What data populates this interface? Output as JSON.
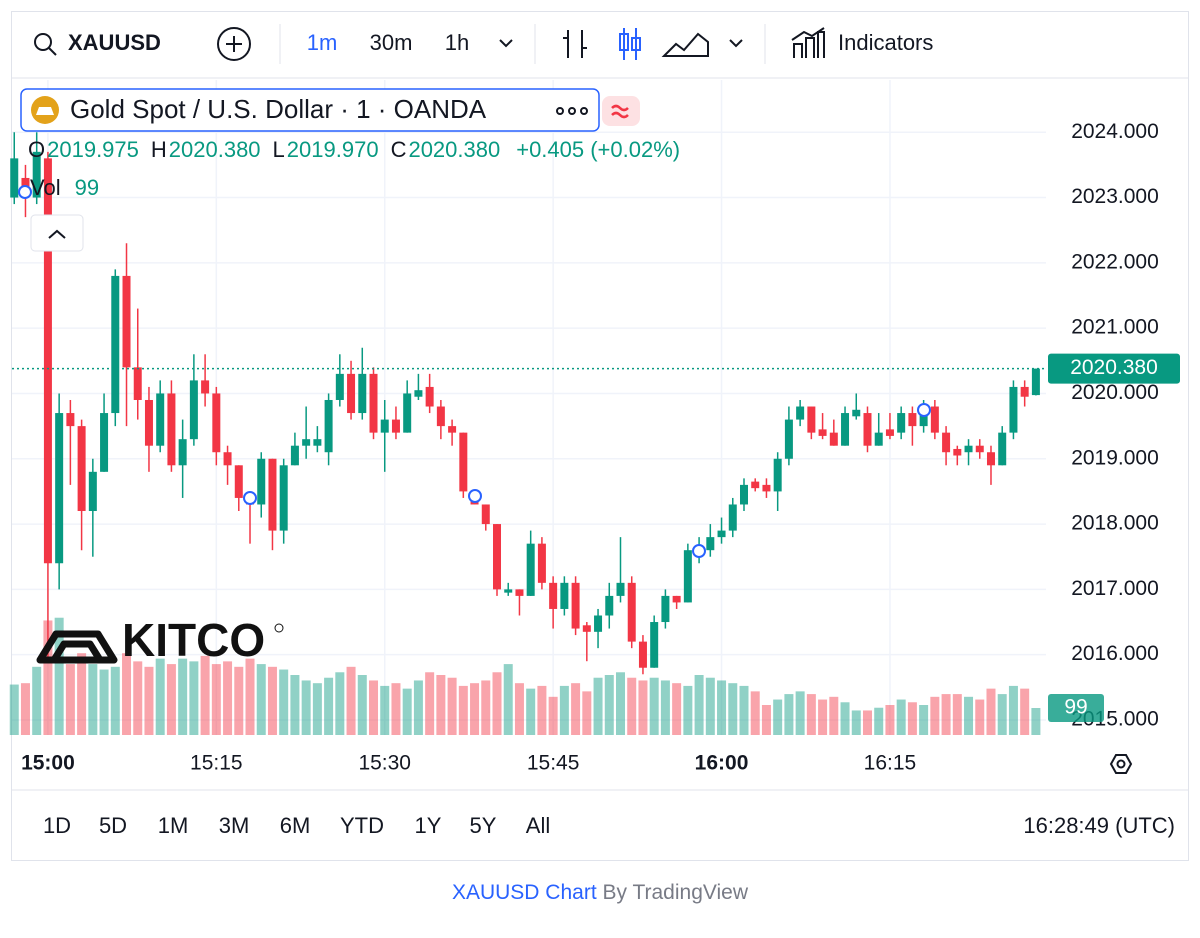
{
  "toolbar": {
    "symbol": "XAUUSD",
    "intervals": [
      "1m",
      "30m",
      "1h"
    ],
    "indicators": "Indicators"
  },
  "chart_data": {
    "type": "candlestick",
    "title": "Gold Spot / U.S. Dollar · 1 · OANDA",
    "legend_keys": [
      "O",
      "H",
      "L",
      "C"
    ],
    "legend_labels": {
      "open": "2019.975",
      "high": "2020.380",
      "low": "2019.970",
      "close": "2020.380",
      "change": "+0.405 (+0.02%)"
    },
    "volume_label": "Vol",
    "up_color": "#089981",
    "down_color": "#f23645",
    "grid": true,
    "open": [
      2023.0,
      2023.3,
      2023.0,
      2023.6,
      2017.4,
      2019.7,
      2019.5,
      2018.2,
      2018.8,
      2019.7,
      2021.8,
      2020.4,
      2019.9,
      2019.2,
      2020.0,
      2018.9,
      2019.3,
      2020.2,
      2020.0,
      2019.1,
      2018.9,
      2018.4,
      2018.3,
      2019.0,
      2017.9,
      2018.9,
      2019.2,
      2019.2,
      2019.1,
      2019.9,
      2020.3,
      2019.7,
      2020.3,
      2019.4,
      2019.6,
      2019.4,
      2019.95,
      2020.1,
      2019.8,
      2019.5,
      2019.4,
      2018.5,
      2018.3,
      2018.0,
      2016.95,
      2017.0,
      2016.9,
      2017.7,
      2017.1,
      2016.7,
      2017.1,
      2016.45,
      2016.35,
      2016.6,
      2016.9,
      2017.1,
      2016.2,
      2015.8,
      2016.5,
      2016.9,
      2016.8,
      2017.6,
      2017.6,
      2017.8,
      2017.9,
      2018.3,
      2018.65,
      2018.6,
      2018.5,
      2019.0,
      2019.6,
      2019.8,
      2019.45,
      2019.4,
      2019.2,
      2019.65,
      2019.7,
      2019.2,
      2019.45,
      2019.4,
      2019.7,
      2019.5,
      2019.8,
      2019.4,
      2019.15,
      2019.1,
      2019.2,
      2019.1,
      2018.9,
      2019.4,
      2020.1,
      2019.975
    ],
    "high": [
      2024.0,
      2023.5,
      2024.0,
      2023.7,
      2020.0,
      2019.9,
      2019.6,
      2019.0,
      2020.0,
      2021.9,
      2022.3,
      2021.3,
      2020.1,
      2020.2,
      2020.2,
      2019.6,
      2020.6,
      2020.6,
      2020.1,
      2019.2,
      2018.9,
      2018.5,
      2019.1,
      2019.0,
      2019.0,
      2019.4,
      2019.8,
      2019.5,
      2020.0,
      2020.6,
      2020.5,
      2020.7,
      2020.4,
      2019.9,
      2019.8,
      2020.2,
      2020.3,
      2020.3,
      2019.9,
      2019.6,
      2019.4,
      2018.5,
      2018.3,
      2018.0,
      2017.1,
      2017.0,
      2017.9,
      2017.8,
      2017.2,
      2017.2,
      2017.2,
      2016.5,
      2016.7,
      2017.1,
      2017.8,
      2017.2,
      2016.3,
      2016.6,
      2017.0,
      2016.9,
      2017.7,
      2017.8,
      2018.0,
      2018.1,
      2018.4,
      2018.7,
      2018.7,
      2018.7,
      2019.1,
      2019.8,
      2019.9,
      2019.8,
      2019.7,
      2019.6,
      2019.8,
      2020.0,
      2019.8,
      2019.7,
      2019.7,
      2019.8,
      2019.8,
      2019.9,
      2019.9,
      2019.5,
      2019.2,
      2019.3,
      2019.3,
      2019.2,
      2019.5,
      2020.2,
      2020.2,
      2020.38
    ],
    "low": [
      2022.9,
      2022.7,
      2022.9,
      2015.9,
      2017.0,
      2018.6,
      2017.6,
      2017.5,
      2018.8,
      2019.5,
      2019.5,
      2019.6,
      2018.8,
      2019.1,
      2018.8,
      2018.4,
      2019.2,
      2019.8,
      2018.9,
      2018.6,
      2018.2,
      2017.7,
      2018.1,
      2017.6,
      2017.7,
      2018.9,
      2019.0,
      2019.1,
      2018.9,
      2019.8,
      2019.6,
      2019.6,
      2019.3,
      2018.8,
      2019.3,
      2019.4,
      2019.9,
      2019.7,
      2019.3,
      2019.2,
      2018.4,
      2018.3,
      2017.9,
      2016.9,
      2016.9,
      2016.6,
      2016.9,
      2017.0,
      2016.4,
      2016.6,
      2016.3,
      2015.9,
      2016.1,
      2016.4,
      2016.8,
      2016.1,
      2015.7,
      2015.8,
      2016.4,
      2016.7,
      2016.8,
      2017.4,
      2017.5,
      2017.7,
      2017.8,
      2018.2,
      2018.5,
      2018.4,
      2018.2,
      2018.9,
      2019.5,
      2019.3,
      2019.3,
      2019.2,
      2019.2,
      2019.6,
      2019.1,
      2019.2,
      2019.3,
      2019.3,
      2019.2,
      2019.4,
      2019.3,
      2018.9,
      2018.9,
      2018.9,
      2019.0,
      2018.6,
      2018.9,
      2019.3,
      2019.8,
      2019.97
    ],
    "close": [
      2023.6,
      2023.0,
      2023.7,
      2017.4,
      2019.7,
      2019.5,
      2018.2,
      2018.8,
      2019.7,
      2021.8,
      2020.4,
      2019.9,
      2019.2,
      2020.0,
      2018.9,
      2019.3,
      2020.2,
      2020.0,
      2019.1,
      2018.9,
      2018.4,
      2018.3,
      2019.0,
      2017.9,
      2018.9,
      2019.2,
      2019.3,
      2019.3,
      2019.9,
      2020.3,
      2019.7,
      2020.3,
      2019.4,
      2019.6,
      2019.4,
      2020.0,
      2020.05,
      2019.8,
      2019.5,
      2019.4,
      2018.5,
      2018.3,
      2018.0,
      2017.0,
      2017.0,
      2016.9,
      2017.7,
      2017.1,
      2016.7,
      2017.1,
      2016.4,
      2016.35,
      2016.6,
      2016.9,
      2017.1,
      2016.2,
      2015.8,
      2016.5,
      2016.9,
      2016.8,
      2017.6,
      2017.65,
      2017.8,
      2017.9,
      2018.3,
      2018.6,
      2018.55,
      2018.5,
      2019.0,
      2019.6,
      2019.8,
      2019.4,
      2019.35,
      2019.2,
      2019.7,
      2019.75,
      2019.2,
      2019.4,
      2019.35,
      2019.7,
      2019.5,
      2019.8,
      2019.4,
      2019.1,
      2019.05,
      2019.2,
      2019.1,
      2018.9,
      2019.4,
      2020.1,
      2019.95,
      2020.38
    ],
    "volume": [
      185,
      190,
      250,
      420,
      430,
      260,
      300,
      260,
      240,
      250,
      300,
      270,
      250,
      280,
      260,
      280,
      270,
      290,
      260,
      270,
      250,
      280,
      260,
      250,
      240,
      220,
      200,
      190,
      210,
      230,
      250,
      220,
      200,
      180,
      190,
      170,
      200,
      230,
      220,
      210,
      180,
      190,
      200,
      230,
      260,
      190,
      170,
      180,
      140,
      180,
      190,
      160,
      210,
      220,
      230,
      210,
      200,
      210,
      200,
      190,
      180,
      220,
      210,
      200,
      190,
      180,
      160,
      110,
      130,
      150,
      160,
      150,
      130,
      140,
      120,
      90,
      90,
      100,
      110,
      130,
      120,
      110,
      140,
      150,
      150,
      140,
      130,
      170,
      150,
      180,
      170,
      99
    ],
    "volume_ylim": [
      0,
      440
    ],
    "xlim": [
      -0.2,
      91.9
    ],
    "xticks": [
      {
        "value": 3,
        "label": "15:00"
      },
      {
        "value": 18,
        "label": "15:15"
      },
      {
        "value": 33,
        "label": "15:30"
      },
      {
        "value": 48,
        "label": "15:45"
      },
      {
        "value": 63,
        "label": "16:00"
      },
      {
        "value": 78,
        "label": "16:15"
      }
    ],
    "ylim": [
      2014.77,
      2024.8
    ],
    "yticks": [
      {
        "value": 2015,
        "label": "2015.000"
      },
      {
        "value": 2016,
        "label": "2016.000"
      },
      {
        "value": 2017,
        "label": "2017.000"
      },
      {
        "value": 2018,
        "label": "2018.000"
      },
      {
        "value": 2019,
        "label": "2019.000"
      },
      {
        "value": 2020,
        "label": "2020.000"
      },
      {
        "value": 2021,
        "label": "2021.000"
      },
      {
        "value": 2022,
        "label": "2022.000"
      },
      {
        "value": 2023,
        "label": "2023.000"
      },
      {
        "value": 2024,
        "label": "2024.000"
      }
    ]
  },
  "logo": "KITCO",
  "ranges": [
    "1D",
    "5D",
    "1M",
    "3M",
    "6M",
    "YTD",
    "1Y",
    "5Y",
    "All"
  ],
  "clock": "16:28:49 (UTC)",
  "footer": {
    "link": "XAUUSD Chart",
    "by": "By TradingView"
  }
}
